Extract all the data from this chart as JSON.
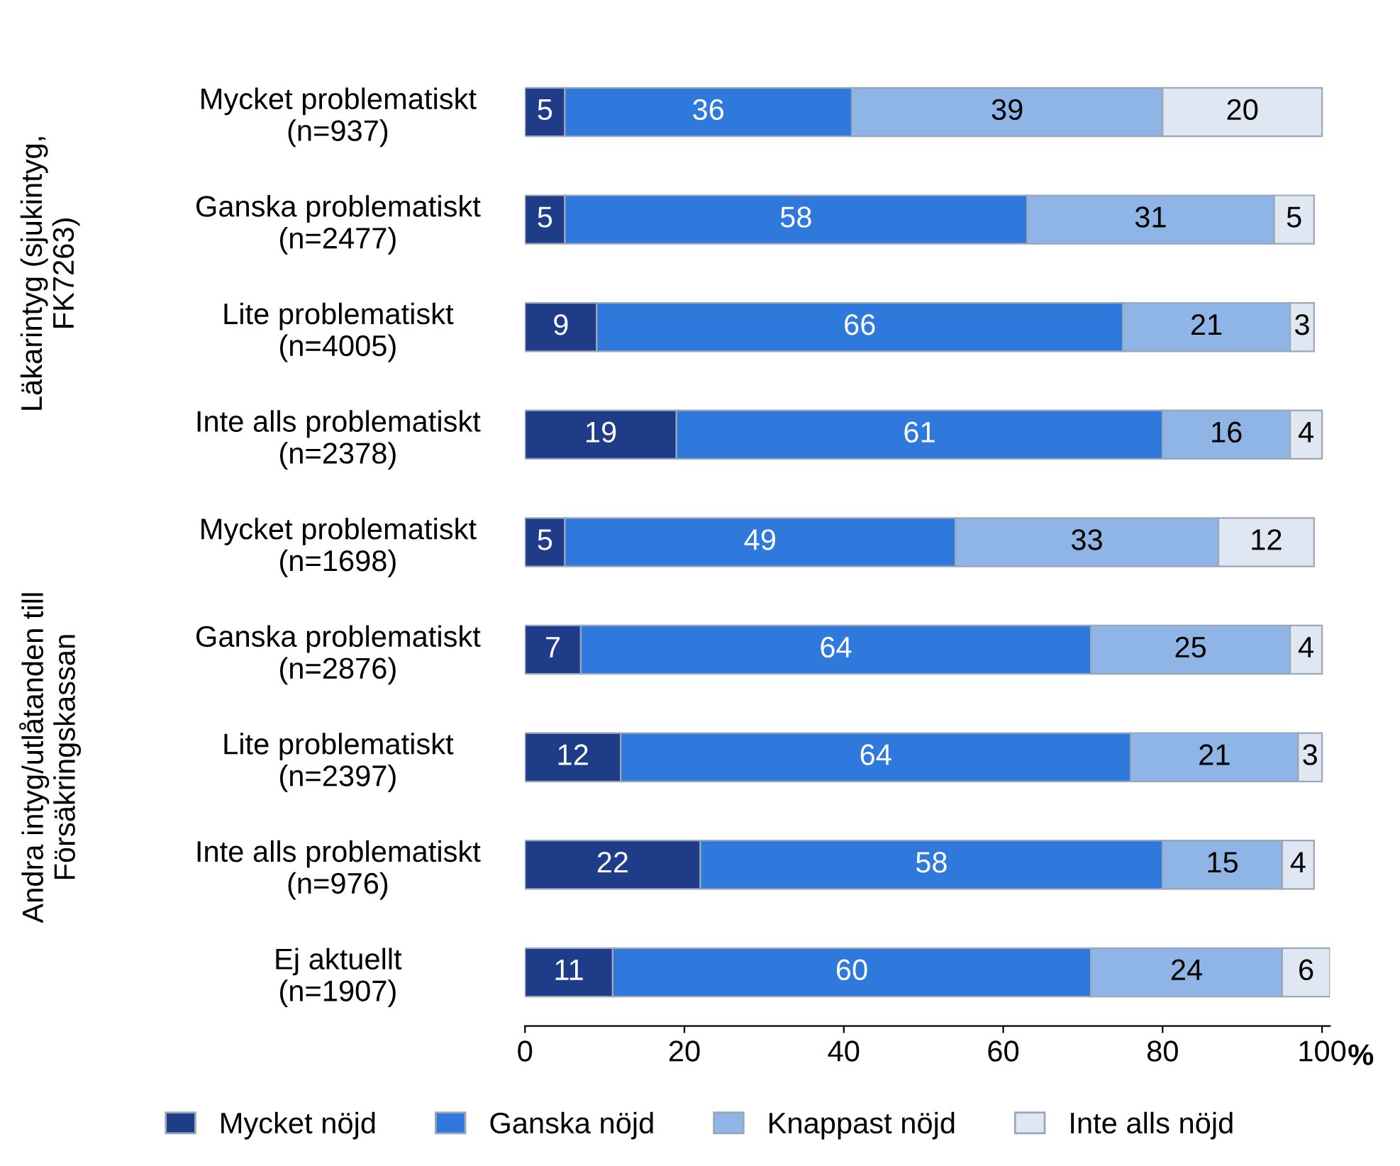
{
  "chart_data": {
    "type": "bar",
    "orientation": "horizontal",
    "stacked": true,
    "data_labels": true,
    "grid": false,
    "legend": "bottom",
    "categories": [
      "Mycket problematiskt\n(n=937)",
      "Ganska problematiskt\n(n=2477)",
      "Lite problematiskt\n(n=4005)",
      "Inte alls problematiskt\n(n=2378)",
      "Mycket problematiskt\n(n=1698)",
      "Ganska problematiskt\n(n=2876)",
      "Lite problematiskt\n(n=2397)",
      "Inte alls problematiskt\n(n=976)",
      "Ej aktuellt\n(n=1907)"
    ],
    "series": [
      {
        "name": "Mycket nöjd",
        "color": "#1f3c88",
        "values": [
          5,
          5,
          9,
          19,
          5,
          7,
          12,
          22,
          11
        ]
      },
      {
        "name": "Ganska nöjd",
        "color": "#2f78dc",
        "values": [
          36,
          58,
          66,
          61,
          49,
          64,
          64,
          58,
          60
        ]
      },
      {
        "name": "Knappast nöjd",
        "color": "#8fb5e6",
        "values": [
          39,
          31,
          21,
          16,
          33,
          25,
          21,
          15,
          24
        ]
      },
      {
        "name": "Inte alls nöjd",
        "color": "#dfe7f3",
        "values": [
          20,
          5,
          3,
          4,
          12,
          4,
          3,
          4,
          6
        ]
      }
    ],
    "xlim": [
      0,
      101
    ],
    "xticks": [
      0,
      20,
      40,
      60,
      80,
      100
    ],
    "xlabel": "%",
    "annotations": [
      "Läkarintyg (sjukintyg,\nFK7263)",
      "Andra intyg/utlåtanden till\nFörsäkringskassan"
    ]
  }
}
